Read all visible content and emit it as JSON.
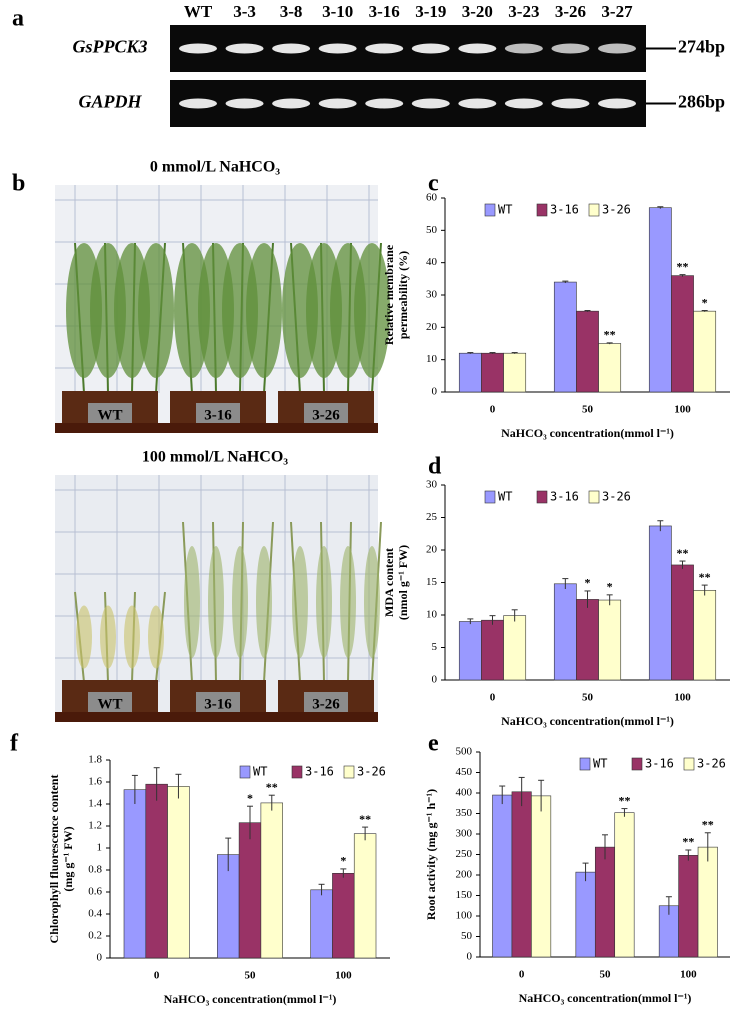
{
  "gel": {
    "panel": "a",
    "lanes": [
      "WT",
      "3-3",
      "3-8",
      "3-10",
      "3-16",
      "3-19",
      "3-20",
      "3-23",
      "3-26",
      "3-27"
    ],
    "genes": [
      {
        "name": "GsPPCK3",
        "size": "274bp"
      },
      {
        "name": "GAPDH",
        "size": "286bp"
      }
    ]
  },
  "photos": {
    "panel": "b",
    "conditions": [
      {
        "title": "0 mmol/L NaHCO₃",
        "labels": [
          "WT",
          "3-16",
          "3-26"
        ]
      },
      {
        "title": "100 mmol/L NaHCO₃",
        "labels": [
          "WT",
          "3-16",
          "3-26"
        ]
      }
    ]
  },
  "chart_data": [
    {
      "type": "bar",
      "panel": "c",
      "ylabel": [
        "Relative membrane",
        "permeability (%)"
      ],
      "xlabel": "NaHCO₃ concentration(mmol l⁻¹)",
      "categories": [
        "0",
        "50",
        "100"
      ],
      "ylim": [
        0,
        60
      ],
      "yticks": [
        0,
        10,
        20,
        30,
        40,
        50,
        60
      ],
      "grid": false,
      "legend": "upper left",
      "series": [
        {
          "name": "WT",
          "color": "#9999ff",
          "values": [
            12,
            34,
            57
          ],
          "errors": [
            0.2,
            0.3,
            0.3
          ],
          "annotations": [
            null,
            null,
            null
          ]
        },
        {
          "name": "3-16",
          "color": "#993366",
          "values": [
            12,
            25,
            36
          ],
          "errors": [
            0.2,
            0.2,
            0.3
          ],
          "annotations": [
            null,
            null,
            "**"
          ]
        },
        {
          "name": "3-26",
          "color": "#ffffcc",
          "values": [
            12,
            15,
            25
          ],
          "errors": [
            0.2,
            0.2,
            0.2
          ],
          "annotations": [
            null,
            "**",
            "*"
          ]
        }
      ]
    },
    {
      "type": "bar",
      "panel": "d",
      "ylabel": [
        "MDA content",
        "(nmol g⁻¹ FW)"
      ],
      "xlabel": "NaHCO₃ concentration(mmol l⁻¹)",
      "categories": [
        "0",
        "50",
        "100"
      ],
      "ylim": [
        0,
        30
      ],
      "yticks": [
        0,
        5,
        10,
        15,
        20,
        25,
        30
      ],
      "grid": false,
      "legend": "upper left",
      "series": [
        {
          "name": "WT",
          "color": "#9999ff",
          "values": [
            9,
            14.8,
            23.7
          ],
          "errors": [
            0.4,
            0.8,
            0.8
          ],
          "annotations": [
            null,
            null,
            null
          ]
        },
        {
          "name": "3-16",
          "color": "#993366",
          "values": [
            9.2,
            12.4,
            17.7
          ],
          "errors": [
            0.7,
            1.3,
            0.6
          ],
          "annotations": [
            null,
            "*",
            "**"
          ]
        },
        {
          "name": "3-26",
          "color": "#ffffcc",
          "values": [
            9.9,
            12.3,
            13.8
          ],
          "errors": [
            0.9,
            0.8,
            0.8
          ],
          "annotations": [
            null,
            "*",
            "**"
          ]
        }
      ]
    },
    {
      "type": "bar",
      "panel": "f",
      "ylabel": [
        "Chlorophyll fluorescence content",
        "(mg g⁻¹ FW)"
      ],
      "xlabel": "NaHCO₃ concentration(mmol l⁻¹)",
      "categories": [
        "0",
        "50",
        "100"
      ],
      "ylim": [
        0,
        1.8
      ],
      "yticks": [
        0,
        0.2,
        0.4,
        0.6,
        0.8,
        1,
        1.2,
        1.4,
        1.6,
        1.8
      ],
      "grid": false,
      "legend": "upper right",
      "series": [
        {
          "name": "WT",
          "color": "#9999ff",
          "values": [
            1.53,
            0.94,
            0.62
          ],
          "errors": [
            0.13,
            0.15,
            0.05
          ],
          "annotations": [
            null,
            null,
            null
          ]
        },
        {
          "name": "3-16",
          "color": "#993366",
          "values": [
            1.58,
            1.23,
            0.77
          ],
          "errors": [
            0.15,
            0.15,
            0.04
          ],
          "annotations": [
            null,
            "*",
            "*"
          ]
        },
        {
          "name": "3-26",
          "color": "#ffffcc",
          "values": [
            1.56,
            1.41,
            1.13
          ],
          "errors": [
            0.11,
            0.07,
            0.06
          ],
          "annotations": [
            null,
            "**",
            "**"
          ]
        }
      ]
    },
    {
      "type": "bar",
      "panel": "e",
      "ylabel": [
        "Root activity (mg g⁻¹ h⁻¹)"
      ],
      "xlabel": "NaHCO₃ concentration(mmol l⁻¹)",
      "categories": [
        "0",
        "50",
        "100"
      ],
      "ylim": [
        0,
        500
      ],
      "yticks": [
        0,
        50,
        100,
        150,
        200,
        250,
        300,
        350,
        400,
        450,
        500
      ],
      "grid": false,
      "legend": "upper right",
      "series": [
        {
          "name": "WT",
          "color": "#9999ff",
          "values": [
            395,
            207,
            125
          ],
          "errors": [
            22,
            22,
            22
          ],
          "annotations": [
            null,
            null,
            null
          ]
        },
        {
          "name": "3-16",
          "color": "#993366",
          "values": [
            403,
            268,
            248
          ],
          "errors": [
            35,
            30,
            13
          ],
          "annotations": [
            null,
            null,
            "**"
          ]
        },
        {
          "name": "3-26",
          "color": "#ffffcc",
          "values": [
            393,
            352,
            268
          ],
          "errors": [
            38,
            10,
            35
          ],
          "annotations": [
            null,
            "**",
            "**"
          ]
        }
      ]
    }
  ]
}
